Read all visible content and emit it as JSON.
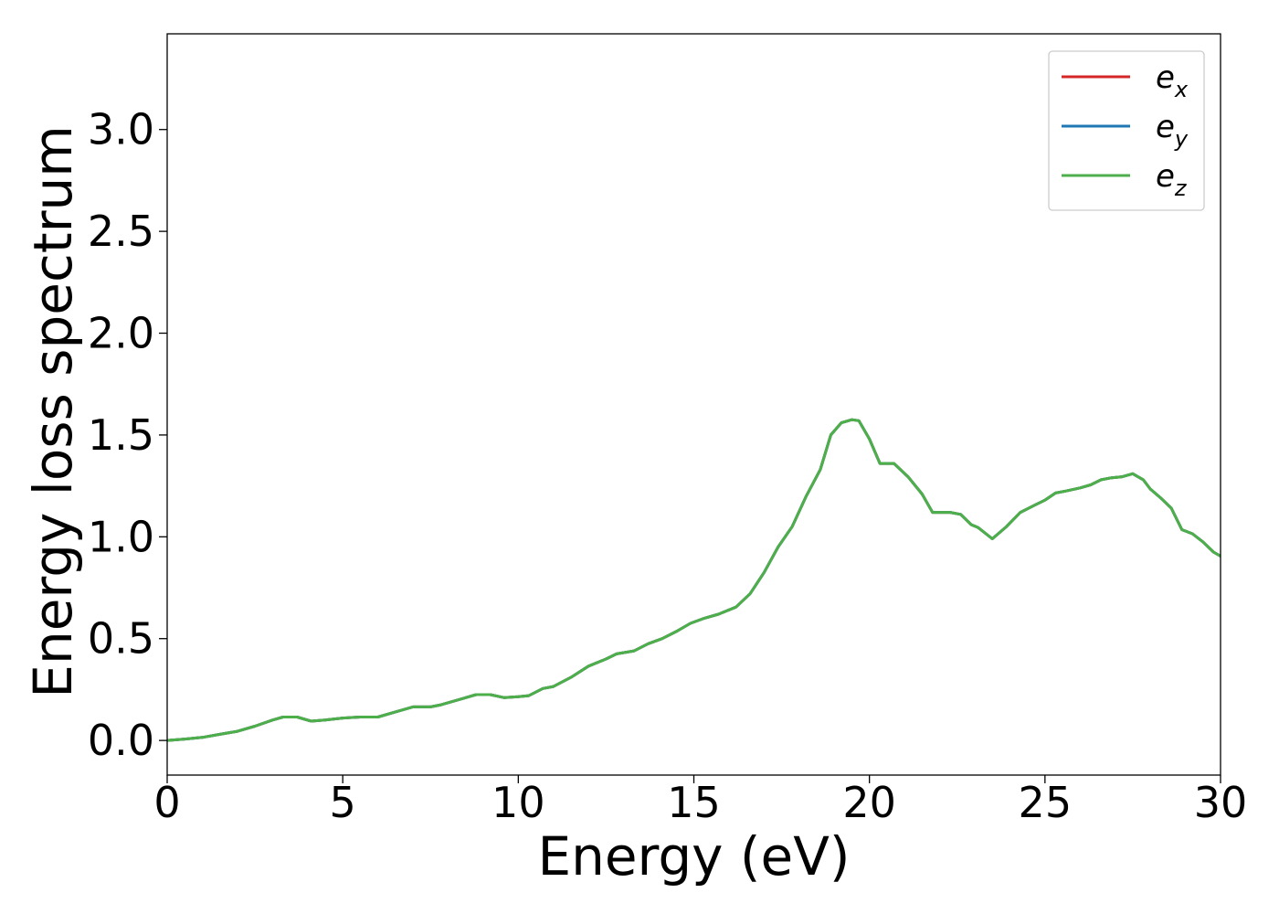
{
  "chart_data": {
    "type": "line",
    "title": "",
    "xlabel": "Energy (eV)",
    "ylabel": "Energy loss spectrum",
    "xlim": [
      0,
      30
    ],
    "ylim": [
      -0.17,
      3.47
    ],
    "xticks": [
      0,
      5,
      10,
      15,
      20,
      25,
      30
    ],
    "yticks": [
      0.0,
      0.5,
      1.0,
      1.5,
      2.0,
      2.5,
      3.0
    ],
    "xtick_labels": [
      "0",
      "5",
      "10",
      "15",
      "20",
      "25",
      "30"
    ],
    "ytick_labels": [
      "0.0",
      "0.5",
      "1.0",
      "1.5",
      "2.0",
      "2.5",
      "3.0"
    ],
    "grid": false,
    "legend_position": "top-right",
    "legend": [
      {
        "base": "e",
        "sub": "x",
        "color": "#d62728"
      },
      {
        "base": "e",
        "sub": "y",
        "color": "#1f77b4"
      },
      {
        "base": "e",
        "sub": "z",
        "color": "#4daf4a"
      }
    ],
    "x": [
      0,
      0.5,
      1,
      1.5,
      2,
      2.5,
      3,
      3.3,
      3.7,
      4.1,
      4.5,
      5,
      5.5,
      6,
      6.5,
      7,
      7.5,
      7.8,
      8.3,
      8.8,
      9.2,
      9.6,
      10,
      10.3,
      10.7,
      11,
      11.5,
      12,
      12.5,
      12.8,
      13.3,
      13.7,
      14.1,
      14.5,
      14.9,
      15.3,
      15.7,
      16.2,
      16.6,
      17,
      17.4,
      17.8,
      18.2,
      18.6,
      18.9,
      19.2,
      19.5,
      19.7,
      20.0,
      20.3,
      20.7,
      21.1,
      21.5,
      21.8,
      22.3,
      22.6,
      22.9,
      23.1,
      23.5,
      23.9,
      24.3,
      24.7,
      25.0,
      25.3,
      25.6,
      26.0,
      26.3,
      26.6,
      26.9,
      27.2,
      27.5,
      27.8,
      28.0,
      28.3,
      28.6,
      28.9,
      29.2,
      29.5,
      29.8,
      30
    ],
    "series": [
      {
        "name": "ex",
        "values": [
          0.0,
          0.007,
          0.015,
          0.03,
          0.045,
          0.07,
          0.1,
          0.115,
          0.115,
          0.095,
          0.1,
          0.11,
          0.115,
          0.115,
          0.14,
          0.165,
          0.165,
          0.175,
          0.2,
          0.225,
          0.225,
          0.21,
          0.215,
          0.22,
          0.255,
          0.265,
          0.31,
          0.365,
          0.4,
          0.425,
          0.44,
          0.475,
          0.5,
          0.535,
          0.575,
          0.6,
          0.62,
          0.655,
          0.72,
          0.825,
          0.95,
          1.05,
          1.2,
          1.33,
          1.5,
          1.56,
          1.575,
          1.57,
          1.48,
          1.36,
          1.36,
          1.295,
          1.21,
          1.12,
          1.12,
          1.11,
          1.06,
          1.045,
          0.99,
          1.05,
          1.12,
          1.155,
          1.18,
          1.215,
          1.225,
          1.24,
          1.255,
          1.28,
          1.29,
          1.295,
          1.31,
          1.28,
          1.235,
          1.19,
          1.14,
          1.035,
          1.015,
          0.975,
          0.925,
          0.905
        ]
      },
      {
        "name": "ey",
        "values": [
          0.0,
          0.007,
          0.015,
          0.03,
          0.045,
          0.07,
          0.1,
          0.115,
          0.115,
          0.095,
          0.1,
          0.11,
          0.115,
          0.115,
          0.14,
          0.165,
          0.165,
          0.175,
          0.2,
          0.225,
          0.225,
          0.21,
          0.215,
          0.22,
          0.255,
          0.265,
          0.31,
          0.365,
          0.4,
          0.425,
          0.44,
          0.475,
          0.5,
          0.535,
          0.575,
          0.6,
          0.62,
          0.655,
          0.72,
          0.825,
          0.95,
          1.05,
          1.2,
          1.33,
          1.5,
          1.56,
          1.575,
          1.57,
          1.48,
          1.36,
          1.36,
          1.295,
          1.21,
          1.12,
          1.12,
          1.11,
          1.06,
          1.045,
          0.99,
          1.05,
          1.12,
          1.155,
          1.18,
          1.215,
          1.225,
          1.24,
          1.255,
          1.28,
          1.29,
          1.295,
          1.31,
          1.28,
          1.235,
          1.19,
          1.14,
          1.035,
          1.015,
          0.975,
          0.925,
          0.905
        ]
      },
      {
        "name": "ez",
        "values": [
          0.0,
          0.007,
          0.015,
          0.03,
          0.045,
          0.07,
          0.1,
          0.115,
          0.115,
          0.095,
          0.1,
          0.11,
          0.115,
          0.115,
          0.14,
          0.165,
          0.165,
          0.175,
          0.2,
          0.225,
          0.225,
          0.21,
          0.215,
          0.22,
          0.255,
          0.265,
          0.31,
          0.365,
          0.4,
          0.425,
          0.44,
          0.475,
          0.5,
          0.535,
          0.575,
          0.6,
          0.62,
          0.655,
          0.72,
          0.825,
          0.95,
          1.05,
          1.2,
          1.33,
          1.5,
          1.56,
          1.575,
          1.57,
          1.48,
          1.36,
          1.36,
          1.295,
          1.21,
          1.12,
          1.12,
          1.11,
          1.06,
          1.045,
          0.99,
          1.05,
          1.12,
          1.155,
          1.18,
          1.215,
          1.225,
          1.24,
          1.255,
          1.28,
          1.29,
          1.295,
          1.31,
          1.28,
          1.235,
          1.19,
          1.14,
          1.035,
          1.015,
          0.975,
          0.925,
          0.905
        ]
      }
    ]
  }
}
